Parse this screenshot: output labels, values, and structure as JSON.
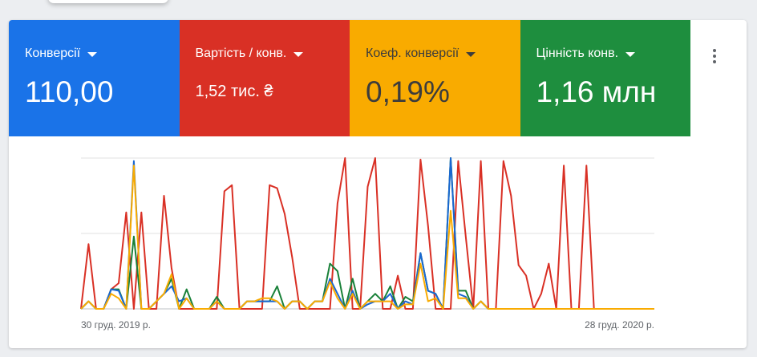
{
  "metrics": [
    {
      "label": "Конверсії",
      "value": "110,00",
      "color": "#1a73e8"
    },
    {
      "label": "Вартість / конв.",
      "value": "1,52 тис. ₴",
      "color": "#d93025"
    },
    {
      "label": "Коеф. конверсії",
      "value": "0,19%",
      "color": "#f9ab00"
    },
    {
      "label": "Цінність конв.",
      "value": "1,16 млн",
      "color": "#1e8e3e"
    }
  ],
  "menu": {
    "icon": "more-vert-icon"
  },
  "chart_data": {
    "type": "line",
    "x_start_label": "30 груд. 2019 р.",
    "x_end_label": "28 груд. 2020 р.",
    "grid": true,
    "ylim": [
      0,
      100
    ],
    "series": [
      {
        "color": "#d93025",
        "values": [
          0,
          43,
          0,
          0,
          13,
          17,
          64,
          0,
          64,
          0,
          0,
          75,
          27,
          0,
          0,
          0,
          0,
          0,
          0,
          78,
          82,
          0,
          0,
          0,
          0,
          82,
          80,
          63,
          34,
          0,
          0,
          0,
          0,
          0,
          70,
          100,
          0,
          0,
          81,
          100,
          0,
          0,
          22,
          0,
          0,
          99,
          55,
          0,
          0,
          0,
          98,
          48,
          0,
          98,
          0,
          0,
          98,
          75,
          29,
          22,
          0,
          10,
          30,
          0,
          95,
          0,
          0,
          95,
          0,
          0,
          0,
          0,
          0,
          0,
          0,
          0,
          0
        ]
      },
      {
        "color": "#188038",
        "values": [
          0,
          5,
          0,
          0,
          13,
          13,
          0,
          48,
          0,
          0,
          5,
          10,
          20,
          0,
          13,
          0,
          0,
          0,
          8,
          0,
          0,
          0,
          5,
          5,
          5,
          5,
          15,
          0,
          5,
          5,
          0,
          5,
          5,
          30,
          25,
          0,
          20,
          0,
          5,
          10,
          5,
          15,
          0,
          8,
          5,
          37,
          12,
          10,
          0,
          100,
          12,
          12,
          0,
          5,
          0,
          0,
          0,
          0,
          0,
          0,
          0,
          0,
          0,
          0,
          0,
          0,
          0,
          0,
          0,
          0,
          0,
          0,
          0,
          0,
          0,
          0,
          0
        ]
      },
      {
        "color": "#1967d2",
        "values": [
          0,
          5,
          0,
          0,
          13,
          12,
          0,
          98,
          0,
          0,
          5,
          10,
          15,
          5,
          7,
          0,
          0,
          0,
          5,
          0,
          0,
          0,
          5,
          5,
          5,
          5,
          5,
          0,
          5,
          5,
          0,
          5,
          5,
          20,
          10,
          0,
          12,
          0,
          3,
          5,
          5,
          10,
          0,
          5,
          3,
          37,
          12,
          10,
          0,
          100,
          10,
          8,
          0,
          5,
          0,
          0,
          0,
          0,
          0,
          0,
          0,
          0,
          0,
          0,
          0,
          0,
          0,
          0,
          0,
          0,
          0,
          0,
          0,
          0,
          0,
          0,
          0
        ]
      },
      {
        "color": "#f9ab00",
        "values": [
          0,
          5,
          0,
          0,
          10,
          7,
          0,
          95,
          0,
          0,
          5,
          10,
          23,
          0,
          7,
          0,
          0,
          0,
          5,
          0,
          0,
          0,
          5,
          5,
          7,
          7,
          5,
          0,
          5,
          5,
          0,
          5,
          5,
          18,
          7,
          0,
          10,
          0,
          5,
          5,
          5,
          5,
          0,
          3,
          3,
          30,
          5,
          7,
          0,
          65,
          7,
          7,
          0,
          5,
          0,
          0,
          0,
          0,
          0,
          0,
          0,
          0,
          0,
          0,
          0,
          0,
          0,
          0,
          0,
          0,
          0,
          0,
          0,
          0,
          0,
          0,
          0
        ]
      }
    ]
  }
}
